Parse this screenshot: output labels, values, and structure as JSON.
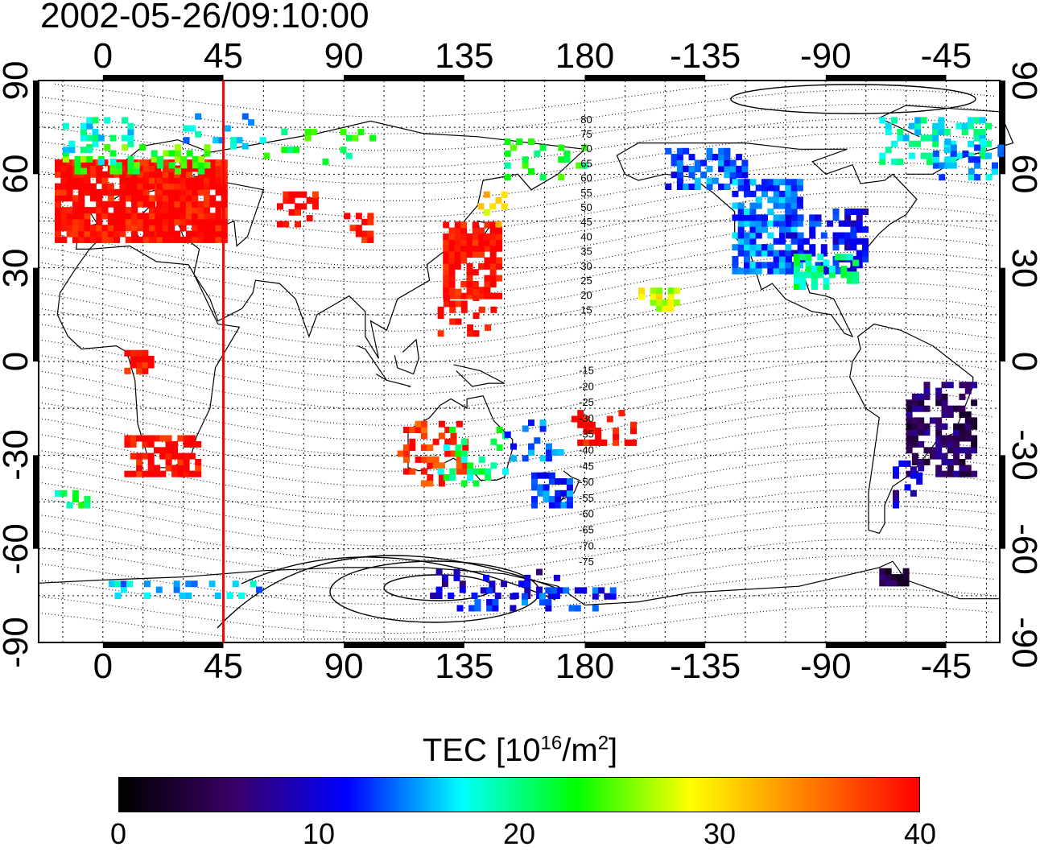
{
  "title": "2002-05-26/09:10:00",
  "x_ticks": [
    "0",
    "45",
    "90",
    "135",
    "180",
    "-135",
    "-90",
    "-45"
  ],
  "x_tick_degrees": [
    0,
    45,
    90,
    135,
    180,
    225,
    270,
    315
  ],
  "y_ticks": [
    "90",
    "60",
    "30",
    "0",
    "-30",
    "-60",
    "-90"
  ],
  "y_tick_degrees": [
    90,
    60,
    30,
    0,
    -30,
    -60,
    -90
  ],
  "lon_range": [
    -24,
    335
  ],
  "lat_range": [
    -90,
    90
  ],
  "meridian_marker_lon": 45,
  "meridian_marker_color": "#ff0000",
  "contour_labels_north": [
    "80",
    "75",
    "70",
    "65",
    "60",
    "55",
    "50",
    "45",
    "40",
    "35",
    "30",
    "25",
    "20",
    "15"
  ],
  "contour_labels_south": [
    "-15",
    "-20",
    "-25",
    "-30",
    "-35",
    "-40",
    "-45",
    "-50",
    "-55",
    "-60",
    "-65",
    "-70",
    "-75"
  ],
  "colorbar": {
    "title_main": "TEC  [10",
    "title_sup1": "16",
    "title_mid": "/m",
    "title_sup2": "2",
    "title_end": "]",
    "min": 0,
    "max": 40,
    "ticks": [
      "0",
      "10",
      "20",
      "30",
      "40"
    ],
    "tick_values": [
      0,
      10,
      20,
      30,
      40
    ],
    "colors": [
      "#000000",
      "#3a0066",
      "#0000ff",
      "#00ffff",
      "#00ff00",
      "#ffff00",
      "#ff8000",
      "#ff0000"
    ]
  }
}
